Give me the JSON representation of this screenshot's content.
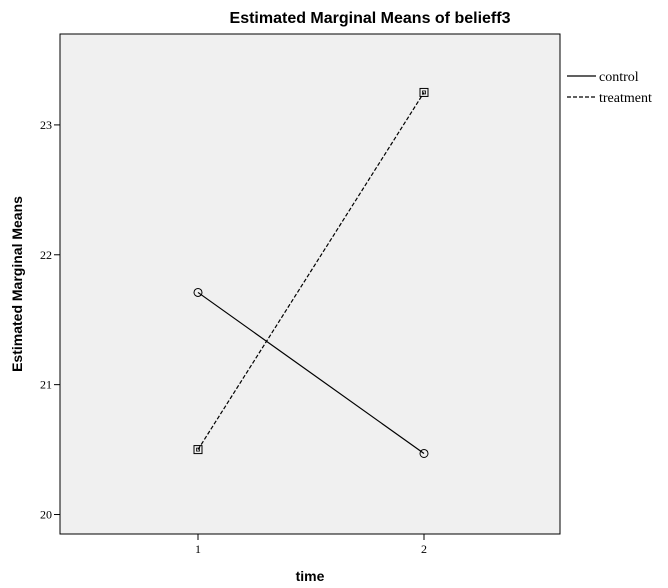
{
  "chart_data": {
    "type": "line",
    "title": "Estimated Marginal Means of belieff3",
    "xlabel": "time",
    "ylabel": "Estimated Marginal Means",
    "categories": [
      "1",
      "2"
    ],
    "y_ticks": [
      "20",
      "21",
      "22",
      "23"
    ],
    "ylim": [
      19.85,
      23.7
    ],
    "grid": false,
    "legend_position": "right",
    "background_color": "#f0f0f0",
    "line_color": "#000000",
    "series": [
      {
        "name": "control",
        "values": [
          21.71,
          20.47
        ],
        "line_style": "solid",
        "marker": "circle"
      },
      {
        "name": "treatment",
        "values": [
          20.5,
          23.25
        ],
        "line_style": "dashed",
        "marker": "square"
      }
    ]
  }
}
